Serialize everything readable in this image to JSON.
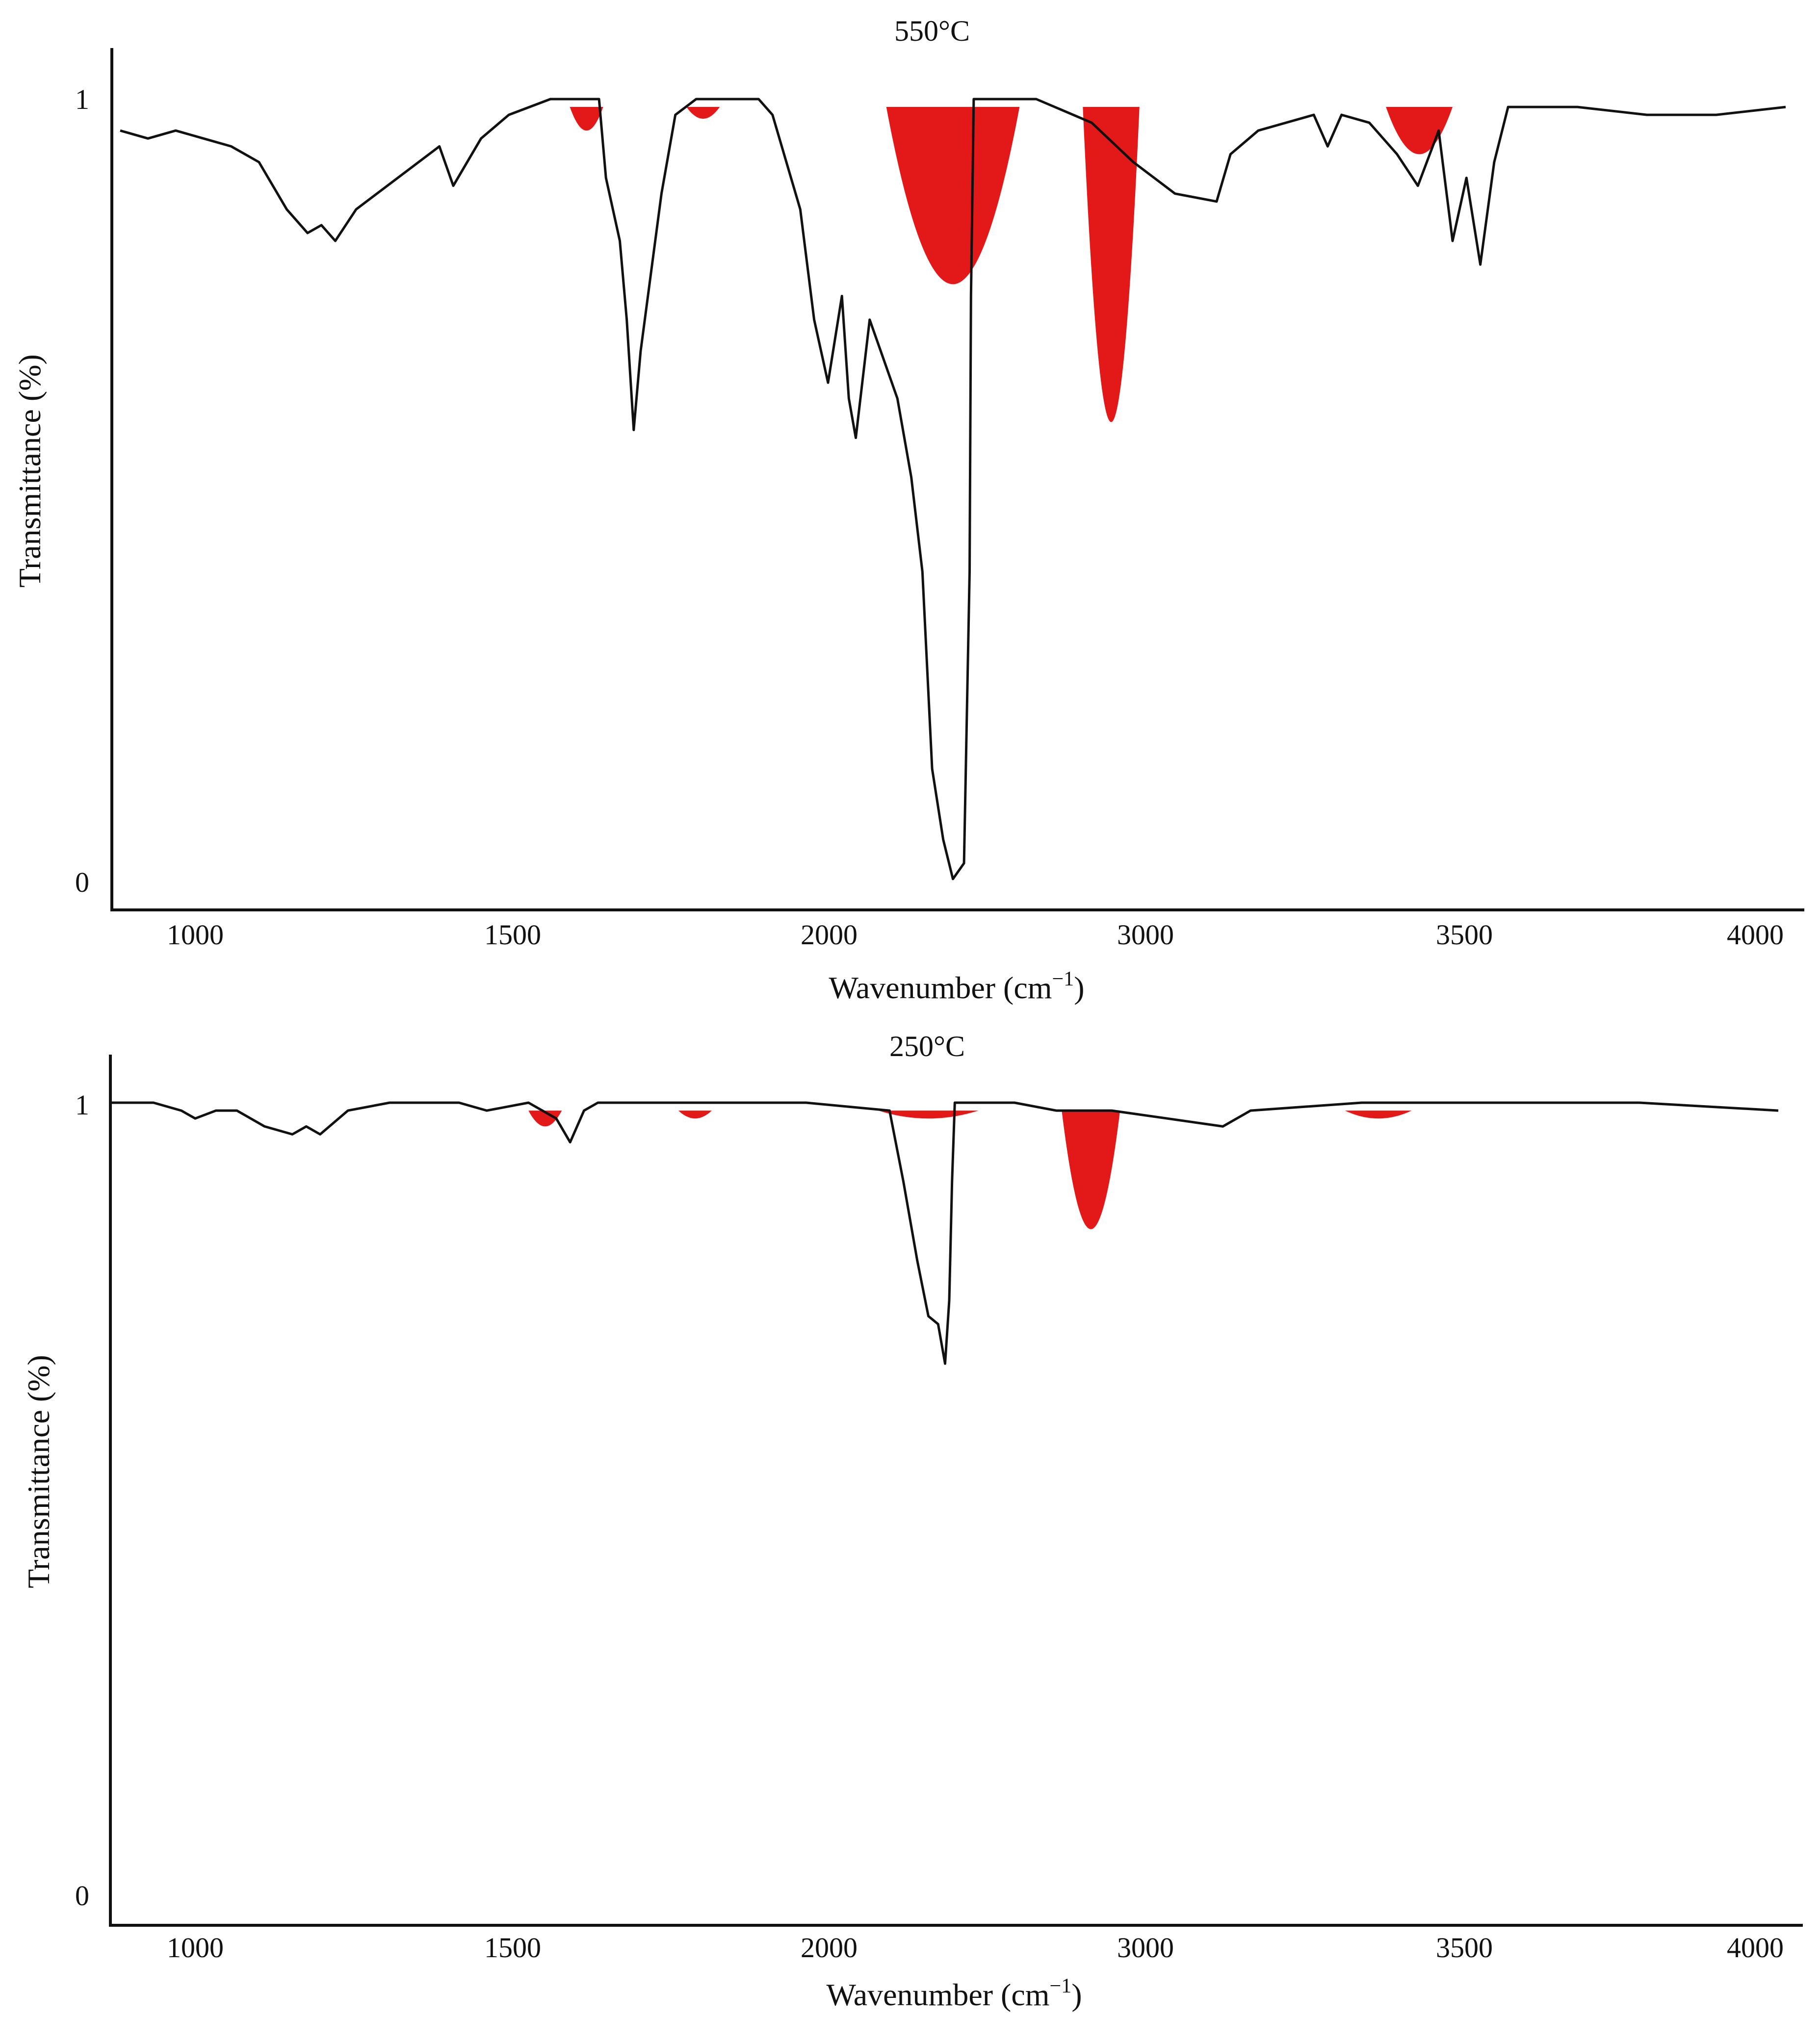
{
  "colors": {
    "trace": "#111111",
    "highlight": "#e00000",
    "background": "#ffffff"
  },
  "chart_data": [
    {
      "type": "line",
      "title": "550°C",
      "xlabel": "Wavenumber (cm",
      "xlabel_sup": "−1",
      "xlabel_end": ")",
      "ylabel": "Transmittance (%)",
      "x_ticks": [
        "1000",
        "1500",
        "2000",
        "3000",
        "3500",
        "4000"
      ],
      "y_ticks": [
        "0",
        "1"
      ],
      "ylim": [
        0,
        1
      ],
      "grid": false,
      "series": [
        {
          "points": [
            [
              0,
              0.96
            ],
            [
              0.02,
              0.95
            ],
            [
              0.04,
              0.96
            ],
            [
              0.06,
              0.95
            ],
            [
              0.08,
              0.94
            ],
            [
              0.1,
              0.92
            ],
            [
              0.12,
              0.86
            ],
            [
              0.135,
              0.83
            ],
            [
              0.145,
              0.84
            ],
            [
              0.155,
              0.82
            ],
            [
              0.17,
              0.86
            ],
            [
              0.2,
              0.9
            ],
            [
              0.23,
              0.94
            ],
            [
              0.24,
              0.89
            ],
            [
              0.26,
              0.95
            ],
            [
              0.28,
              0.98
            ],
            [
              0.31,
              1.0
            ],
            [
              0.345,
              1.0
            ],
            [
              0.35,
              0.9
            ],
            [
              0.36,
              0.82
            ],
            [
              0.365,
              0.72
            ],
            [
              0.37,
              0.58
            ],
            [
              0.375,
              0.68
            ],
            [
              0.39,
              0.88
            ],
            [
              0.4,
              0.98
            ],
            [
              0.415,
              1.0
            ],
            [
              0.46,
              1.0
            ],
            [
              0.47,
              0.98
            ],
            [
              0.49,
              0.86
            ],
            [
              0.5,
              0.72
            ],
            [
              0.51,
              0.64
            ],
            [
              0.52,
              0.75
            ],
            [
              0.525,
              0.62
            ],
            [
              0.53,
              0.57
            ],
            [
              0.54,
              0.72
            ],
            [
              0.56,
              0.62
            ],
            [
              0.57,
              0.52
            ],
            [
              0.578,
              0.4
            ],
            [
              0.585,
              0.15
            ],
            [
              0.593,
              0.06
            ],
            [
              0.6,
              0.01
            ],
            [
              0.608,
              0.03
            ],
            [
              0.612,
              0.4
            ],
            [
              0.613,
              0.75
            ],
            [
              0.615,
              1.0
            ],
            [
              0.66,
              1.0
            ],
            [
              0.7,
              0.97
            ],
            [
              0.73,
              0.92
            ],
            [
              0.76,
              0.88
            ],
            [
              0.79,
              0.87
            ],
            [
              0.8,
              0.93
            ],
            [
              0.82,
              0.96
            ],
            [
              0.86,
              0.98
            ],
            [
              0.87,
              0.94
            ],
            [
              0.88,
              0.98
            ],
            [
              0.9,
              0.97
            ],
            [
              0.92,
              0.93
            ],
            [
              0.935,
              0.89
            ],
            [
              0.95,
              0.96
            ],
            [
              0.96,
              0.82
            ],
            [
              0.97,
              0.9
            ],
            [
              0.98,
              0.79
            ],
            [
              0.99,
              0.92
            ],
            [
              1.0,
              0.99
            ],
            [
              1.05,
              0.99
            ],
            [
              1.1,
              0.98
            ],
            [
              1.15,
              0.98
            ],
            [
              1.2,
              0.99
            ]
          ]
        }
      ]
    },
    {
      "type": "line",
      "title": "250°C",
      "xlabel": "Wavenumber (cm",
      "xlabel_sup": "−1",
      "xlabel_end": ")",
      "ylabel": "Transmittance (%)",
      "x_ticks": [
        "1000",
        "1500",
        "2000",
        "3000",
        "3500",
        "4000"
      ],
      "y_ticks": [
        "0",
        "1"
      ],
      "ylim": [
        0,
        1
      ],
      "grid": false,
      "series": [
        {
          "points": [
            [
              0,
              1.0
            ],
            [
              0.03,
              1.0
            ],
            [
              0.05,
              0.99
            ],
            [
              0.06,
              0.98
            ],
            [
              0.075,
              0.99
            ],
            [
              0.09,
              0.99
            ],
            [
              0.11,
              0.97
            ],
            [
              0.13,
              0.96
            ],
            [
              0.14,
              0.97
            ],
            [
              0.15,
              0.96
            ],
            [
              0.17,
              0.99
            ],
            [
              0.2,
              1.0
            ],
            [
              0.25,
              1.0
            ],
            [
              0.27,
              0.99
            ],
            [
              0.3,
              1.0
            ],
            [
              0.32,
              0.98
            ],
            [
              0.33,
              0.95
            ],
            [
              0.34,
              0.99
            ],
            [
              0.35,
              1.0
            ],
            [
              0.4,
              1.0
            ],
            [
              0.45,
              1.0
            ],
            [
              0.5,
              1.0
            ],
            [
              0.56,
              0.99
            ],
            [
              0.57,
              0.9
            ],
            [
              0.58,
              0.8
            ],
            [
              0.588,
              0.73
            ],
            [
              0.595,
              0.72
            ],
            [
              0.6,
              0.67
            ],
            [
              0.603,
              0.75
            ],
            [
              0.605,
              0.9
            ],
            [
              0.607,
              1.0
            ],
            [
              0.65,
              1.0
            ],
            [
              0.68,
              0.99
            ],
            [
              0.72,
              0.99
            ],
            [
              0.76,
              0.98
            ],
            [
              0.8,
              0.97
            ],
            [
              0.82,
              0.99
            ],
            [
              0.9,
              1.0
            ],
            [
              0.95,
              1.0
            ],
            [
              1.0,
              1.0
            ],
            [
              1.1,
              1.0
            ],
            [
              1.2,
              0.99
            ]
          ]
        }
      ]
    }
  ]
}
